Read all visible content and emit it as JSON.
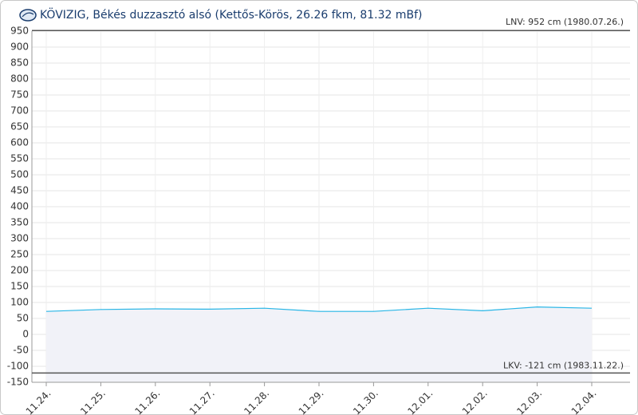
{
  "chart_data": {
    "type": "line",
    "title": "KÖVIZIG, Békés duzzasztó alsó (Kettős-Körös, 26.26 fkm, 81.32 mBf)",
    "categories": [
      "11.24.",
      "11.25.",
      "11.26.",
      "11.27.",
      "11.28.",
      "11.29.",
      "11.30.",
      "12.01.",
      "12.02.",
      "12.03.",
      "12.04."
    ],
    "values": [
      72,
      78,
      80,
      79,
      82,
      72,
      72,
      82,
      74,
      86,
      82
    ],
    "color": "#29b6e6",
    "ylim": [
      -150,
      950
    ],
    "yticks": [
      -150,
      -100,
      -50,
      0,
      50,
      100,
      150,
      200,
      250,
      300,
      350,
      400,
      450,
      500,
      550,
      600,
      650,
      700,
      750,
      800,
      850,
      900,
      950
    ],
    "grid": true,
    "lnv": {
      "value": 952,
      "label": "LNV: 952 cm (1980.07.26.)"
    },
    "lkv": {
      "value": -121,
      "label": "LKV: -121 cm (1983.11.22.)"
    }
  }
}
